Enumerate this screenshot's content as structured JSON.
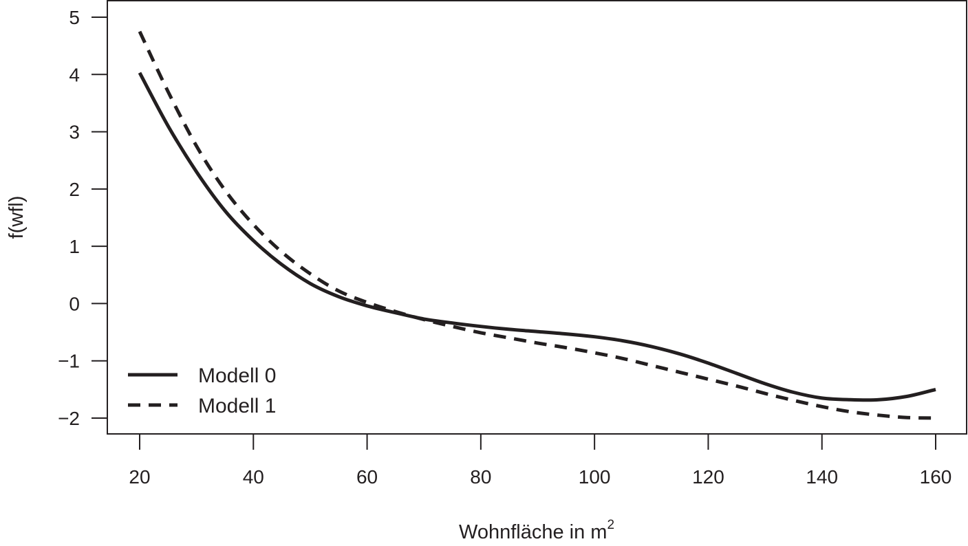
{
  "chart_data": {
    "type": "line",
    "title": "",
    "xlabel": "Wohnfläche in m",
    "xlabel_superscript": "2",
    "ylabel": "f(wfl)",
    "xlim": [
      20,
      160
    ],
    "ylim": [
      -2,
      5
    ],
    "x_ticks": [
      20,
      40,
      60,
      80,
      100,
      120,
      140,
      160
    ],
    "y_ticks": [
      -2,
      -1,
      0,
      1,
      2,
      3,
      4,
      5
    ],
    "x_tick_labels": [
      "20",
      "40",
      "60",
      "80",
      "100",
      "120",
      "140",
      "160"
    ],
    "y_tick_labels": [
      "−2",
      "−1",
      "0",
      "1",
      "2",
      "3",
      "4",
      "5"
    ],
    "grid": false,
    "legend": "bottom-left",
    "color": "#231f20",
    "series": [
      {
        "name": "Modell 0",
        "style": "solid",
        "x": [
          20,
          25,
          30,
          35,
          40,
          45,
          50,
          55,
          60,
          65,
          70,
          75,
          80,
          85,
          90,
          95,
          100,
          105,
          110,
          115,
          120,
          125,
          130,
          135,
          140,
          145,
          150,
          155,
          160
        ],
        "y": [
          4.03,
          3.1,
          2.3,
          1.62,
          1.1,
          0.68,
          0.35,
          0.12,
          -0.04,
          -0.16,
          -0.27,
          -0.34,
          -0.4,
          -0.45,
          -0.49,
          -0.53,
          -0.58,
          -0.65,
          -0.75,
          -0.88,
          -1.04,
          -1.22,
          -1.4,
          -1.55,
          -1.65,
          -1.68,
          -1.68,
          -1.62,
          -1.5
        ]
      },
      {
        "name": "Modell 1",
        "style": "dashed",
        "x": [
          20,
          25,
          30,
          35,
          40,
          45,
          50,
          55,
          60,
          65,
          70,
          75,
          80,
          85,
          90,
          95,
          100,
          105,
          110,
          115,
          120,
          125,
          130,
          135,
          140,
          145,
          150,
          155,
          160
        ],
        "y": [
          4.75,
          3.7,
          2.75,
          1.98,
          1.38,
          0.9,
          0.52,
          0.22,
          0.02,
          -0.14,
          -0.28,
          -0.4,
          -0.51,
          -0.6,
          -0.69,
          -0.77,
          -0.86,
          -0.96,
          -1.08,
          -1.2,
          -1.32,
          -1.44,
          -1.57,
          -1.69,
          -1.8,
          -1.89,
          -1.95,
          -1.99,
          -2.0
        ]
      }
    ]
  }
}
